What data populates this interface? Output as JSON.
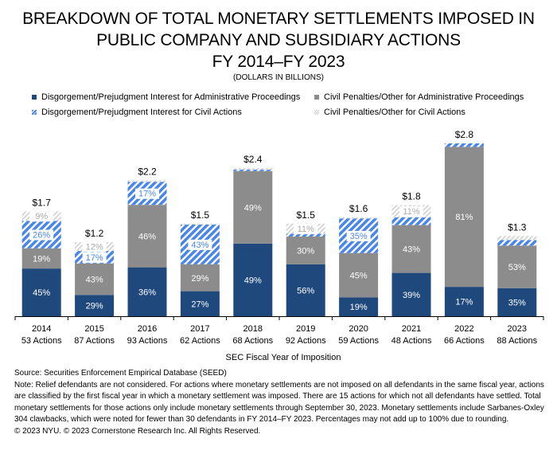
{
  "chart_data": {
    "type": "bar",
    "stacked": true,
    "title": "BREAKDOWN OF TOTAL MONETARY SETTLEMENTS IMPOSED IN PUBLIC COMPANY AND SUBSIDIARY ACTIONS FY 2014–FY 2023",
    "title_lines": [
      "BREAKDOWN OF TOTAL MONETARY SETTLEMENTS IMPOSED IN",
      "PUBLIC COMPANY AND SUBSIDIARY ACTIONS",
      "FY 2014–FY 2023"
    ],
    "subtitle": "(DOLLARS IN BILLIONS)",
    "xlabel": "SEC Fiscal Year of Imposition",
    "ylabel": "",
    "ylim": [
      0,
      2.8
    ],
    "grid": false,
    "legend_position": "top",
    "categories": [
      "2014",
      "2015",
      "2016",
      "2017",
      "2018",
      "2019",
      "2020",
      "2021",
      "2022",
      "2023"
    ],
    "category_sublabels": [
      "53 Actions",
      "87 Actions",
      "93 Actions",
      "62 Actions",
      "68 Actions",
      "92 Actions",
      "59 Actions",
      "48 Actions",
      "66 Actions",
      "88 Actions"
    ],
    "totals": [
      1.7,
      1.2,
      2.2,
      1.5,
      2.4,
      1.5,
      1.6,
      1.8,
      2.8,
      1.3
    ],
    "total_labels": [
      "$1.7",
      "$1.2",
      "$2.2",
      "$1.5",
      "$2.4",
      "$1.5",
      "$1.6",
      "$1.8",
      "$2.8",
      "$1.3"
    ],
    "series": [
      {
        "name": "Disgorgement/Prejudgment Interest for Administrative Proceedings",
        "color": "#1f497d",
        "pattern": "solid",
        "label_color": "#ffffff",
        "values_pct": [
          45,
          29,
          36,
          27,
          49,
          56,
          19,
          39,
          17,
          35
        ],
        "labels": [
          "45%",
          "29%",
          "36%",
          "27%",
          "49%",
          "56%",
          "19%",
          "39%",
          "17%",
          "35%"
        ]
      },
      {
        "name": "Civil Penalties/Other for Administrative Proceedings",
        "color": "#8c8c8c",
        "pattern": "solid",
        "label_color": "#ffffff",
        "values_pct": [
          19,
          43,
          46,
          29,
          49,
          30,
          45,
          43,
          81,
          53
        ],
        "labels": [
          "19%",
          "43%",
          "46%",
          "29%",
          "49%",
          "30%",
          "45%",
          "43%",
          "81%",
          "53%"
        ]
      },
      {
        "name": "Disgorgement/Prejudgment Interest for Civil Actions",
        "color": "#4a86e8",
        "pattern": "stripes",
        "label_color": "#4a86e8",
        "values_pct": [
          26,
          17,
          17,
          43,
          1,
          3,
          35,
          7,
          2,
          7
        ],
        "labels": [
          "26%",
          "17%",
          "17%",
          "43%",
          "",
          "",
          "35%",
          "",
          "",
          ""
        ]
      },
      {
        "name": "Civil Penalties/Other for Civil Actions",
        "color": "#c8c8c8",
        "pattern": "stripes",
        "label_color": "#aaaaaa",
        "values_pct": [
          9,
          12,
          1,
          1,
          1,
          11,
          1,
          11,
          0,
          5
        ],
        "labels": [
          "9%",
          "12%",
          "",
          "",
          "",
          "11%",
          "",
          "11%",
          "",
          ""
        ]
      }
    ]
  },
  "footer": {
    "source": "Source: Securities Enforcement Empirical Database (SEED)",
    "note": "Note: Relief defendants are not considered. For actions where monetary settlements are not imposed on all defendants in the same fiscal year, actions are classified by the first fiscal year in which a monetary settlement was imposed. There are 15 actions for which not all defendants have settled. Total monetary settlements for those actions only include monetary settlements through September 30, 2023. Monetary settlements include Sarbanes-Oxley 304 clawbacks, which were noted for fewer than 30 defendants in FY 2014–FY 2023. Percentages may not add up to 100% due to rounding.",
    "copyright": "© 2023 NYU. © 2023 Cornerstone Research Inc. All Rights Reserved."
  }
}
